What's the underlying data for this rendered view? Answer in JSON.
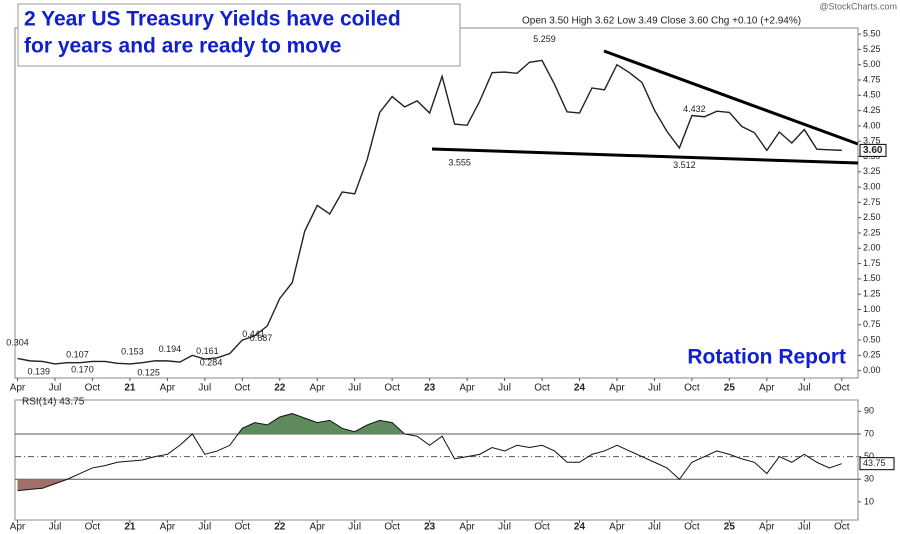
{
  "chart_data": {
    "type": "line",
    "title": [
      "2 Year US Treasury Yields have coiled",
      "for years and are ready to move"
    ],
    "header": "Open 3.50  High 3.62  Low 3.49  Close 3.60  Chg +0.10 (+2.94%)",
    "watermark": "@StockCharts.com",
    "brand": "Rotation Report",
    "last_label": "3.60",
    "color": "#222222",
    "x": [
      3,
      4,
      5,
      6,
      7,
      8,
      9,
      10,
      11,
      12,
      13,
      14,
      15,
      16,
      17,
      18,
      19,
      20,
      21,
      22,
      23,
      24,
      25,
      26,
      27,
      28,
      29,
      30,
      31,
      32,
      33,
      34,
      35,
      36,
      37,
      38,
      39,
      40,
      41,
      42,
      43,
      44,
      45,
      46,
      47,
      48,
      49,
      50,
      51,
      52,
      53,
      54,
      55,
      56,
      57,
      58,
      59,
      60,
      61,
      62,
      63,
      64,
      65,
      66,
      67,
      68,
      69
    ],
    "values": [
      0.2,
      0.16,
      0.15,
      0.11,
      0.13,
      0.13,
      0.15,
      0.15,
      0.12,
      0.11,
      0.13,
      0.16,
      0.16,
      0.14,
      0.25,
      0.19,
      0.21,
      0.28,
      0.5,
      0.57,
      0.73,
      1.18,
      1.44,
      2.28,
      2.7,
      2.56,
      2.92,
      2.89,
      3.45,
      4.22,
      4.48,
      4.31,
      4.41,
      4.21,
      4.81,
      4.03,
      4.01,
      4.4,
      4.87,
      4.88,
      4.86,
      5.04,
      5.07,
      4.68,
      4.23,
      4.21,
      4.62,
      4.59,
      5.0,
      4.87,
      4.71,
      4.26,
      3.91,
      3.64,
      4.17,
      4.15,
      4.24,
      4.22,
      3.99,
      3.89,
      3.6,
      3.9,
      3.72,
      3.94,
      3.62,
      3.61,
      3.6
    ],
    "annotations": [
      {
        "x": 3,
        "value": 0.304,
        "label": "0.304"
      },
      {
        "x": 4.7,
        "value": 0.139,
        "label": "0.139"
      },
      {
        "x": 7.8,
        "value": 0.107,
        "label": "0.107"
      },
      {
        "x": 8.2,
        "value": 0.17,
        "label": "0.170"
      },
      {
        "x": 12.2,
        "value": 0.153,
        "label": "0.153"
      },
      {
        "x": 13.5,
        "value": 0.125,
        "label": "0.125"
      },
      {
        "x": 15.2,
        "value": 0.194,
        "label": "0.194"
      },
      {
        "x": 18.5,
        "value": 0.284,
        "label": "0.284"
      },
      {
        "x": 18.2,
        "value": 0.161,
        "label": "0.161"
      },
      {
        "x": 22.5,
        "value": 0.687,
        "label": "0.687"
      },
      {
        "x": 21.9,
        "value": 0.441,
        "label": "0.441"
      },
      {
        "x": 38.4,
        "value": 3.555,
        "label": "3.555"
      },
      {
        "x": 45.2,
        "value": 5.259,
        "label": "5.259"
      },
      {
        "x": 57.2,
        "value": 4.432,
        "label": "4.432"
      },
      {
        "x": 56.4,
        "value": 3.512,
        "label": "3.512"
      }
    ],
    "xlim": [
      2.8,
      70.3
    ],
    "xticks": [
      {
        "value": 3,
        "label": "Apr"
      },
      {
        "value": 6,
        "label": "Jul"
      },
      {
        "value": 9,
        "label": "Oct"
      },
      {
        "value": 12,
        "label": "21"
      },
      {
        "value": 15,
        "label": "Apr"
      },
      {
        "value": 18,
        "label": "Jul"
      },
      {
        "value": 21,
        "label": "Oct"
      },
      {
        "value": 24,
        "label": "22"
      },
      {
        "value": 27,
        "label": "Apr"
      },
      {
        "value": 30,
        "label": "Jul"
      },
      {
        "value": 33,
        "label": "Oct"
      },
      {
        "value": 36,
        "label": "23"
      },
      {
        "value": 39,
        "label": "Apr"
      },
      {
        "value": 42,
        "label": "Jul"
      },
      {
        "value": 45,
        "label": "Oct"
      },
      {
        "value": 48,
        "label": "24"
      },
      {
        "value": 51,
        "label": "Apr"
      },
      {
        "value": 54,
        "label": "Jul"
      },
      {
        "value": 57,
        "label": "Oct"
      },
      {
        "value": 60,
        "label": "25"
      },
      {
        "value": 63,
        "label": "Apr"
      },
      {
        "value": 66,
        "label": "Jul"
      },
      {
        "value": 69,
        "label": "Oct"
      }
    ],
    "ylim": [
      -0.12,
      5.6
    ],
    "yticks": [
      {
        "value": 0,
        "label": "0.00"
      },
      {
        "value": 0.25,
        "label": "0.25"
      },
      {
        "value": 0.5,
        "label": "0.50"
      },
      {
        "value": 0.75,
        "label": "0.75"
      },
      {
        "value": 1,
        "label": "1.00"
      },
      {
        "value": 1.25,
        "label": "1.25"
      },
      {
        "value": 1.5,
        "label": "1.50"
      },
      {
        "value": 1.75,
        "label": "1.75"
      },
      {
        "value": 2,
        "label": "2.00"
      },
      {
        "value": 2.25,
        "label": "2.25"
      },
      {
        "value": 2.5,
        "label": "2.50"
      },
      {
        "value": 2.75,
        "label": "2.75"
      },
      {
        "value": 3,
        "label": "3.00"
      },
      {
        "value": 3.25,
        "label": "3.25"
      },
      {
        "value": 3.5,
        "label": "3.50"
      },
      {
        "value": 3.75,
        "label": "3.75"
      },
      {
        "value": 4,
        "label": "4.00"
      },
      {
        "value": 4.25,
        "label": "4.25"
      },
      {
        "value": 4.5,
        "label": "4.50"
      },
      {
        "value": 4.75,
        "label": "4.75"
      },
      {
        "value": 5,
        "label": "5.00"
      },
      {
        "value": 5.25,
        "label": "5.25"
      },
      {
        "value": 5.5,
        "label": "5.50"
      }
    ],
    "rsi": {
      "title": "RSI(14) 43.75",
      "last_label": "43.75",
      "values": [
        20,
        21,
        22,
        26,
        30,
        35,
        40,
        42,
        45,
        46,
        47,
        50,
        52,
        60,
        70,
        52,
        55,
        60,
        75,
        80,
        78,
        85,
        88,
        84,
        80,
        82,
        75,
        72,
        78,
        82,
        80,
        70,
        68,
        60,
        68,
        48,
        50,
        52,
        58,
        55,
        60,
        58,
        60,
        55,
        45,
        45,
        52,
        55,
        60,
        55,
        50,
        45,
        40,
        30,
        45,
        50,
        55,
        52,
        48,
        45,
        35,
        50,
        45,
        52,
        45,
        40,
        43.75
      ],
      "ylim": [
        -6,
        100
      ],
      "yticks": [
        10,
        30,
        50,
        70,
        90
      ],
      "overbought": 70,
      "oversold": 30,
      "mid": 50,
      "overbought_color": "#5e8a5e",
      "oversold_color": "#a0706a"
    }
  }
}
